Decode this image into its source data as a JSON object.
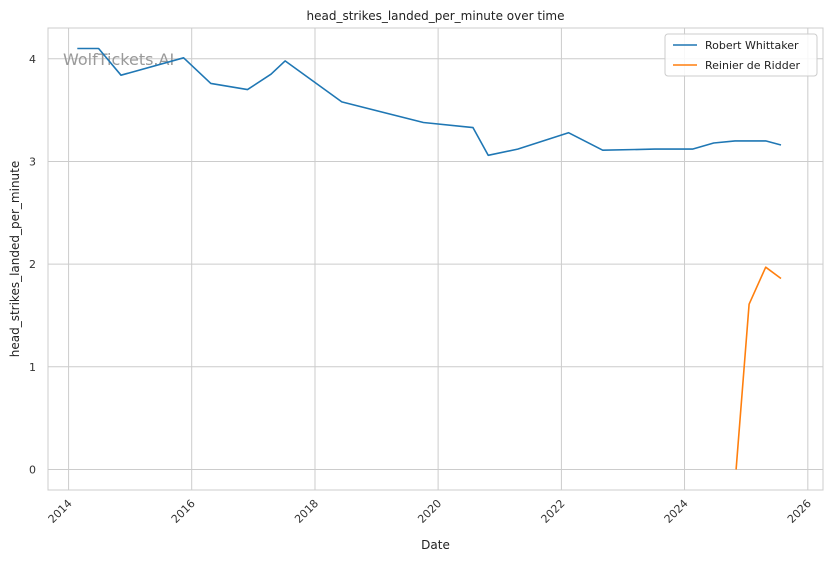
{
  "chart_data": {
    "type": "line",
    "title": "head_strikes_landed_per_minute over time",
    "xlabel": "Date",
    "ylabel": "head_strikes_landed_per_minute",
    "x_axis_type": "date",
    "xlim": [
      "2013-09-01",
      "2026-04-01"
    ],
    "ylim": [
      -0.2,
      4.3
    ],
    "x_ticks": [
      "2014",
      "2016",
      "2018",
      "2020",
      "2022",
      "2024",
      "2026"
    ],
    "y_ticks": [
      0,
      1,
      2,
      3,
      4
    ],
    "grid": true,
    "legend_position": "top-right",
    "watermark": "WolfTickets.AI",
    "series": [
      {
        "name": "Robert Whittaker",
        "color": "#1f77b4",
        "points": [
          {
            "x": "2014-02-22",
            "y": 4.1
          },
          {
            "x": "2014-06-28",
            "y": 4.1
          },
          {
            "x": "2014-11-08",
            "y": 3.84
          },
          {
            "x": "2015-11-14",
            "y": 4.01
          },
          {
            "x": "2016-04-23",
            "y": 3.76
          },
          {
            "x": "2016-11-27",
            "y": 3.7
          },
          {
            "x": "2017-04-15",
            "y": 3.85
          },
          {
            "x": "2017-07-08",
            "y": 3.98
          },
          {
            "x": "2018-06-09",
            "y": 3.58
          },
          {
            "x": "2019-10-06",
            "y": 3.38
          },
          {
            "x": "2020-07-26",
            "y": 3.33
          },
          {
            "x": "2020-10-24",
            "y": 3.06
          },
          {
            "x": "2021-04-17",
            "y": 3.12
          },
          {
            "x": "2022-02-12",
            "y": 3.28
          },
          {
            "x": "2022-09-03",
            "y": 3.11
          },
          {
            "x": "2023-07-08",
            "y": 3.12
          },
          {
            "x": "2024-02-17",
            "y": 3.12
          },
          {
            "x": "2024-06-22",
            "y": 3.18
          },
          {
            "x": "2024-10-26",
            "y": 3.2
          },
          {
            "x": "2025-04-26",
            "y": 3.2
          },
          {
            "x": "2025-07-26",
            "y": 3.16
          }
        ]
      },
      {
        "name": "Reinier de Ridder",
        "color": "#ff7f0e",
        "points": [
          {
            "x": "2024-11-02",
            "y": 0.0
          },
          {
            "x": "2025-01-18",
            "y": 1.61
          },
          {
            "x": "2025-04-26",
            "y": 1.97
          },
          {
            "x": "2025-07-26",
            "y": 1.86
          }
        ]
      }
    ]
  }
}
